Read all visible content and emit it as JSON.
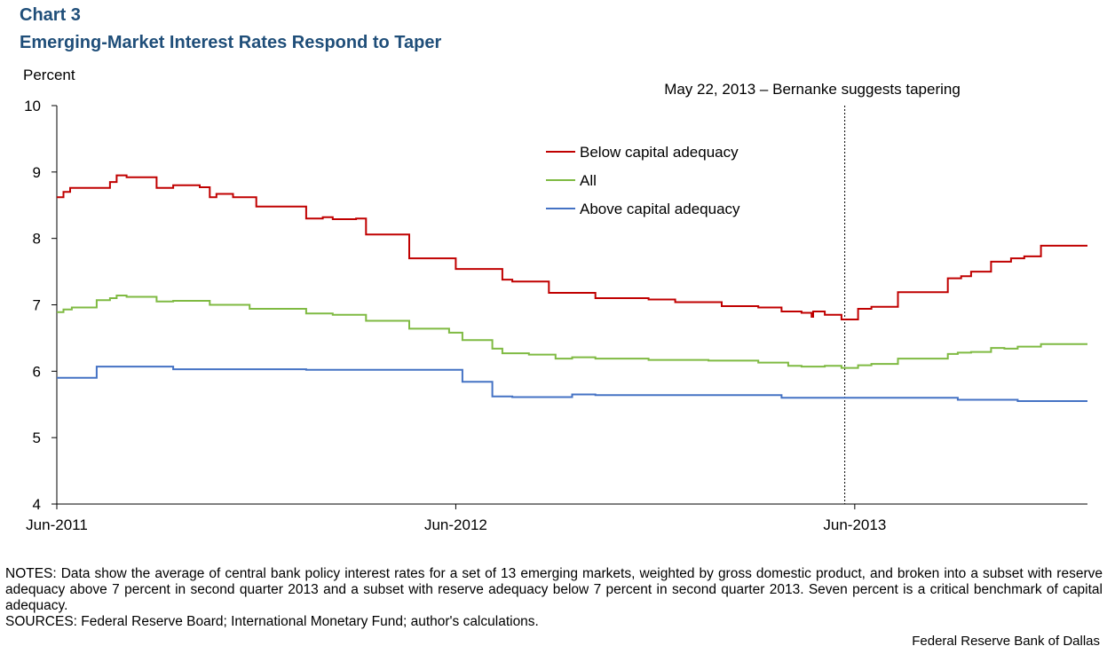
{
  "header": {
    "chart_number": "Chart 3",
    "title": "Emerging-Market Interest Rates Respond to Taper"
  },
  "chart_data": {
    "type": "line",
    "title": "Emerging-Market Interest Rates Respond to Taper",
    "ylabel": "Percent",
    "xlabel": "",
    "ylim": [
      4,
      10
    ],
    "yticks": [
      4,
      5,
      6,
      7,
      8,
      9,
      10
    ],
    "xlim": [
      0,
      31
    ],
    "xticks": [
      {
        "label": "Jun-2011",
        "x": 0
      },
      {
        "label": "Jun-2012",
        "x": 12
      },
      {
        "label": "Jun-2013",
        "x": 24
      }
    ],
    "grid": false,
    "legend_position": "upper-middle",
    "series": [
      {
        "name": "Below capital adequacy",
        "color": "#c00000",
        "points": [
          [
            0,
            8.62
          ],
          [
            0.2,
            8.62
          ],
          [
            0.2,
            8.7
          ],
          [
            0.4,
            8.7
          ],
          [
            0.4,
            8.76
          ],
          [
            1.6,
            8.76
          ],
          [
            1.6,
            8.85
          ],
          [
            1.8,
            8.85
          ],
          [
            1.8,
            8.95
          ],
          [
            2.1,
            8.95
          ],
          [
            2.1,
            8.92
          ],
          [
            3,
            8.92
          ],
          [
            3,
            8.76
          ],
          [
            3.5,
            8.76
          ],
          [
            3.5,
            8.8
          ],
          [
            4.3,
            8.8
          ],
          [
            4.3,
            8.77
          ],
          [
            4.6,
            8.77
          ],
          [
            4.6,
            8.62
          ],
          [
            4.8,
            8.62
          ],
          [
            4.8,
            8.67
          ],
          [
            5.3,
            8.67
          ],
          [
            5.3,
            8.62
          ],
          [
            6.0,
            8.62
          ],
          [
            6.0,
            8.48
          ],
          [
            7.5,
            8.48
          ],
          [
            7.5,
            8.3
          ],
          [
            8.0,
            8.3
          ],
          [
            8.0,
            8.32
          ],
          [
            8.3,
            8.32
          ],
          [
            8.3,
            8.29
          ],
          [
            9.0,
            8.29
          ],
          [
            9.0,
            8.3
          ],
          [
            9.3,
            8.3
          ],
          [
            9.3,
            8.06
          ],
          [
            10.6,
            8.06
          ],
          [
            10.6,
            7.7
          ],
          [
            12.0,
            7.7
          ],
          [
            12.0,
            7.54
          ],
          [
            13.4,
            7.54
          ],
          [
            13.4,
            7.38
          ],
          [
            13.7,
            7.38
          ],
          [
            13.7,
            7.35
          ],
          [
            14.8,
            7.35
          ],
          [
            14.8,
            7.18
          ],
          [
            16.2,
            7.18
          ],
          [
            16.2,
            7.1
          ],
          [
            17.8,
            7.1
          ],
          [
            17.8,
            7.08
          ],
          [
            18.6,
            7.08
          ],
          [
            18.6,
            7.04
          ],
          [
            20.0,
            7.04
          ],
          [
            20.0,
            6.98
          ],
          [
            21.1,
            6.98
          ],
          [
            21.1,
            6.96
          ],
          [
            21.8,
            6.96
          ],
          [
            21.8,
            6.9
          ],
          [
            22.4,
            6.9
          ],
          [
            22.4,
            6.88
          ],
          [
            22.7,
            6.88
          ],
          [
            22.7,
            6.82
          ],
          [
            22.75,
            6.82
          ],
          [
            22.75,
            6.9
          ],
          [
            23.1,
            6.9
          ],
          [
            23.1,
            6.85
          ],
          [
            23.6,
            6.85
          ],
          [
            23.6,
            6.78
          ],
          [
            24.1,
            6.78
          ],
          [
            24.1,
            6.94
          ],
          [
            24.5,
            6.94
          ],
          [
            24.5,
            6.97
          ],
          [
            25.3,
            6.97
          ],
          [
            25.3,
            7.19
          ],
          [
            26.8,
            7.19
          ],
          [
            26.8,
            7.4
          ],
          [
            27.2,
            7.4
          ],
          [
            27.2,
            7.43
          ],
          [
            27.5,
            7.43
          ],
          [
            27.5,
            7.5
          ],
          [
            28.1,
            7.5
          ],
          [
            28.1,
            7.65
          ],
          [
            28.7,
            7.65
          ],
          [
            28.7,
            7.7
          ],
          [
            29.1,
            7.7
          ],
          [
            29.1,
            7.73
          ],
          [
            29.6,
            7.73
          ],
          [
            29.6,
            7.89
          ],
          [
            31,
            7.89
          ]
        ]
      },
      {
        "name": "All",
        "color": "#7fba42",
        "points": [
          [
            0,
            6.89
          ],
          [
            0.2,
            6.89
          ],
          [
            0.2,
            6.93
          ],
          [
            0.45,
            6.93
          ],
          [
            0.45,
            6.96
          ],
          [
            1.2,
            6.96
          ],
          [
            1.2,
            7.07
          ],
          [
            1.6,
            7.07
          ],
          [
            1.6,
            7.1
          ],
          [
            1.8,
            7.1
          ],
          [
            1.8,
            7.14
          ],
          [
            2.1,
            7.14
          ],
          [
            2.1,
            7.12
          ],
          [
            3.0,
            7.12
          ],
          [
            3.0,
            7.05
          ],
          [
            3.5,
            7.05
          ],
          [
            3.5,
            7.06
          ],
          [
            4.6,
            7.06
          ],
          [
            4.6,
            7.0
          ],
          [
            4.9,
            7.0
          ],
          [
            4.9,
            7.0
          ],
          [
            5.8,
            7.0
          ],
          [
            5.8,
            6.94
          ],
          [
            7.5,
            6.94
          ],
          [
            7.5,
            6.87
          ],
          [
            8.3,
            6.87
          ],
          [
            8.3,
            6.85
          ],
          [
            9.3,
            6.85
          ],
          [
            9.3,
            6.76
          ],
          [
            10.6,
            6.76
          ],
          [
            10.6,
            6.64
          ],
          [
            11.8,
            6.64
          ],
          [
            11.8,
            6.58
          ],
          [
            12.2,
            6.58
          ],
          [
            12.2,
            6.47
          ],
          [
            13.1,
            6.47
          ],
          [
            13.1,
            6.34
          ],
          [
            13.4,
            6.34
          ],
          [
            13.4,
            6.27
          ],
          [
            14.2,
            6.27
          ],
          [
            14.2,
            6.25
          ],
          [
            15.0,
            6.25
          ],
          [
            15.0,
            6.19
          ],
          [
            15.5,
            6.19
          ],
          [
            15.5,
            6.21
          ],
          [
            16.2,
            6.21
          ],
          [
            16.2,
            6.19
          ],
          [
            17.8,
            6.19
          ],
          [
            17.8,
            6.17
          ],
          [
            19.6,
            6.17
          ],
          [
            19.6,
            6.16
          ],
          [
            21.1,
            6.16
          ],
          [
            21.1,
            6.13
          ],
          [
            22.0,
            6.13
          ],
          [
            22.0,
            6.08
          ],
          [
            22.4,
            6.08
          ],
          [
            22.4,
            6.07
          ],
          [
            23.1,
            6.07
          ],
          [
            23.1,
            6.08
          ],
          [
            23.6,
            6.08
          ],
          [
            23.6,
            6.05
          ],
          [
            24.1,
            6.05
          ],
          [
            24.1,
            6.09
          ],
          [
            24.5,
            6.09
          ],
          [
            24.5,
            6.11
          ],
          [
            25.3,
            6.11
          ],
          [
            25.3,
            6.19
          ],
          [
            26.8,
            6.19
          ],
          [
            26.8,
            6.26
          ],
          [
            27.1,
            6.26
          ],
          [
            27.1,
            6.28
          ],
          [
            27.5,
            6.28
          ],
          [
            27.5,
            6.29
          ],
          [
            28.1,
            6.29
          ],
          [
            28.1,
            6.35
          ],
          [
            28.5,
            6.35
          ],
          [
            28.5,
            6.34
          ],
          [
            28.9,
            6.34
          ],
          [
            28.9,
            6.37
          ],
          [
            29.6,
            6.37
          ],
          [
            29.6,
            6.41
          ],
          [
            31,
            6.41
          ]
        ]
      },
      {
        "name": "Above capital adequacy",
        "color": "#4472c4",
        "points": [
          [
            0,
            5.9
          ],
          [
            1.2,
            5.9
          ],
          [
            1.2,
            6.07
          ],
          [
            3.5,
            6.07
          ],
          [
            3.5,
            6.03
          ],
          [
            7.5,
            6.03
          ],
          [
            7.5,
            6.02
          ],
          [
            12.2,
            6.02
          ],
          [
            12.2,
            5.84
          ],
          [
            13.1,
            5.84
          ],
          [
            13.1,
            5.62
          ],
          [
            13.7,
            5.62
          ],
          [
            13.7,
            5.61
          ],
          [
            15.5,
            5.61
          ],
          [
            15.5,
            5.65
          ],
          [
            16.2,
            5.65
          ],
          [
            16.2,
            5.64
          ],
          [
            21.8,
            5.64
          ],
          [
            21.8,
            5.6
          ],
          [
            27.1,
            5.6
          ],
          [
            27.1,
            5.57
          ],
          [
            28.9,
            5.57
          ],
          [
            28.9,
            5.55
          ],
          [
            31,
            5.55
          ]
        ]
      }
    ],
    "annotations": [
      {
        "text": "May 22, 2013 – Bernanke suggests tapering",
        "x": 23.7,
        "style": "vertical-dotted-line"
      }
    ]
  },
  "footer": {
    "notes": "NOTES: Data show the average of central bank policy interest rates for a set of 13 emerging markets, weighted by gross domestic product, and broken into a subset with reserve adequacy above 7 percent in second quarter 2013 and a subset with reserve adequacy below 7 percent in second quarter 2013. Seven percent is a critical benchmark of capital adequacy.",
    "sources": "SOURCES: Federal Reserve Board; International Monetary Fund; author's calculations.",
    "credit": "Federal Reserve Bank of Dallas"
  }
}
